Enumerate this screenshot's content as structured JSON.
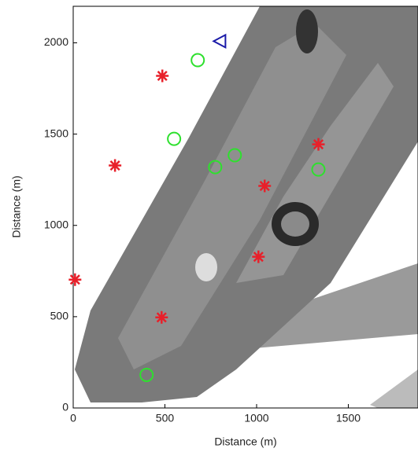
{
  "chart_data": {
    "type": "scatter",
    "xlabel": "Distance (m)",
    "ylabel": "Distance (m)",
    "xlim": [
      0,
      1880
    ],
    "ylim": [
      0,
      2200
    ],
    "xticks": [
      0,
      500,
      1000,
      1500
    ],
    "yticks": [
      0,
      500,
      1000,
      1500,
      2000
    ],
    "series": [
      {
        "marker": "star",
        "color": "#e8202a",
        "x": [
          10,
          228,
          486,
          482,
          1010,
          1044,
          1337
        ],
        "values": [
          703,
          1328,
          1819,
          496,
          828,
          1216,
          1444
        ]
      },
      {
        "marker": "circle",
        "color": "#2ee02e",
        "x": [
          400,
          550,
          679,
          774,
          881,
          1337
        ],
        "values": [
          181,
          1474,
          1905,
          1319,
          1384,
          1306
        ]
      },
      {
        "marker": "triangle-left",
        "color": "#1a1aa8",
        "x": [
          800
        ],
        "values": [
          2009
        ]
      }
    ]
  }
}
